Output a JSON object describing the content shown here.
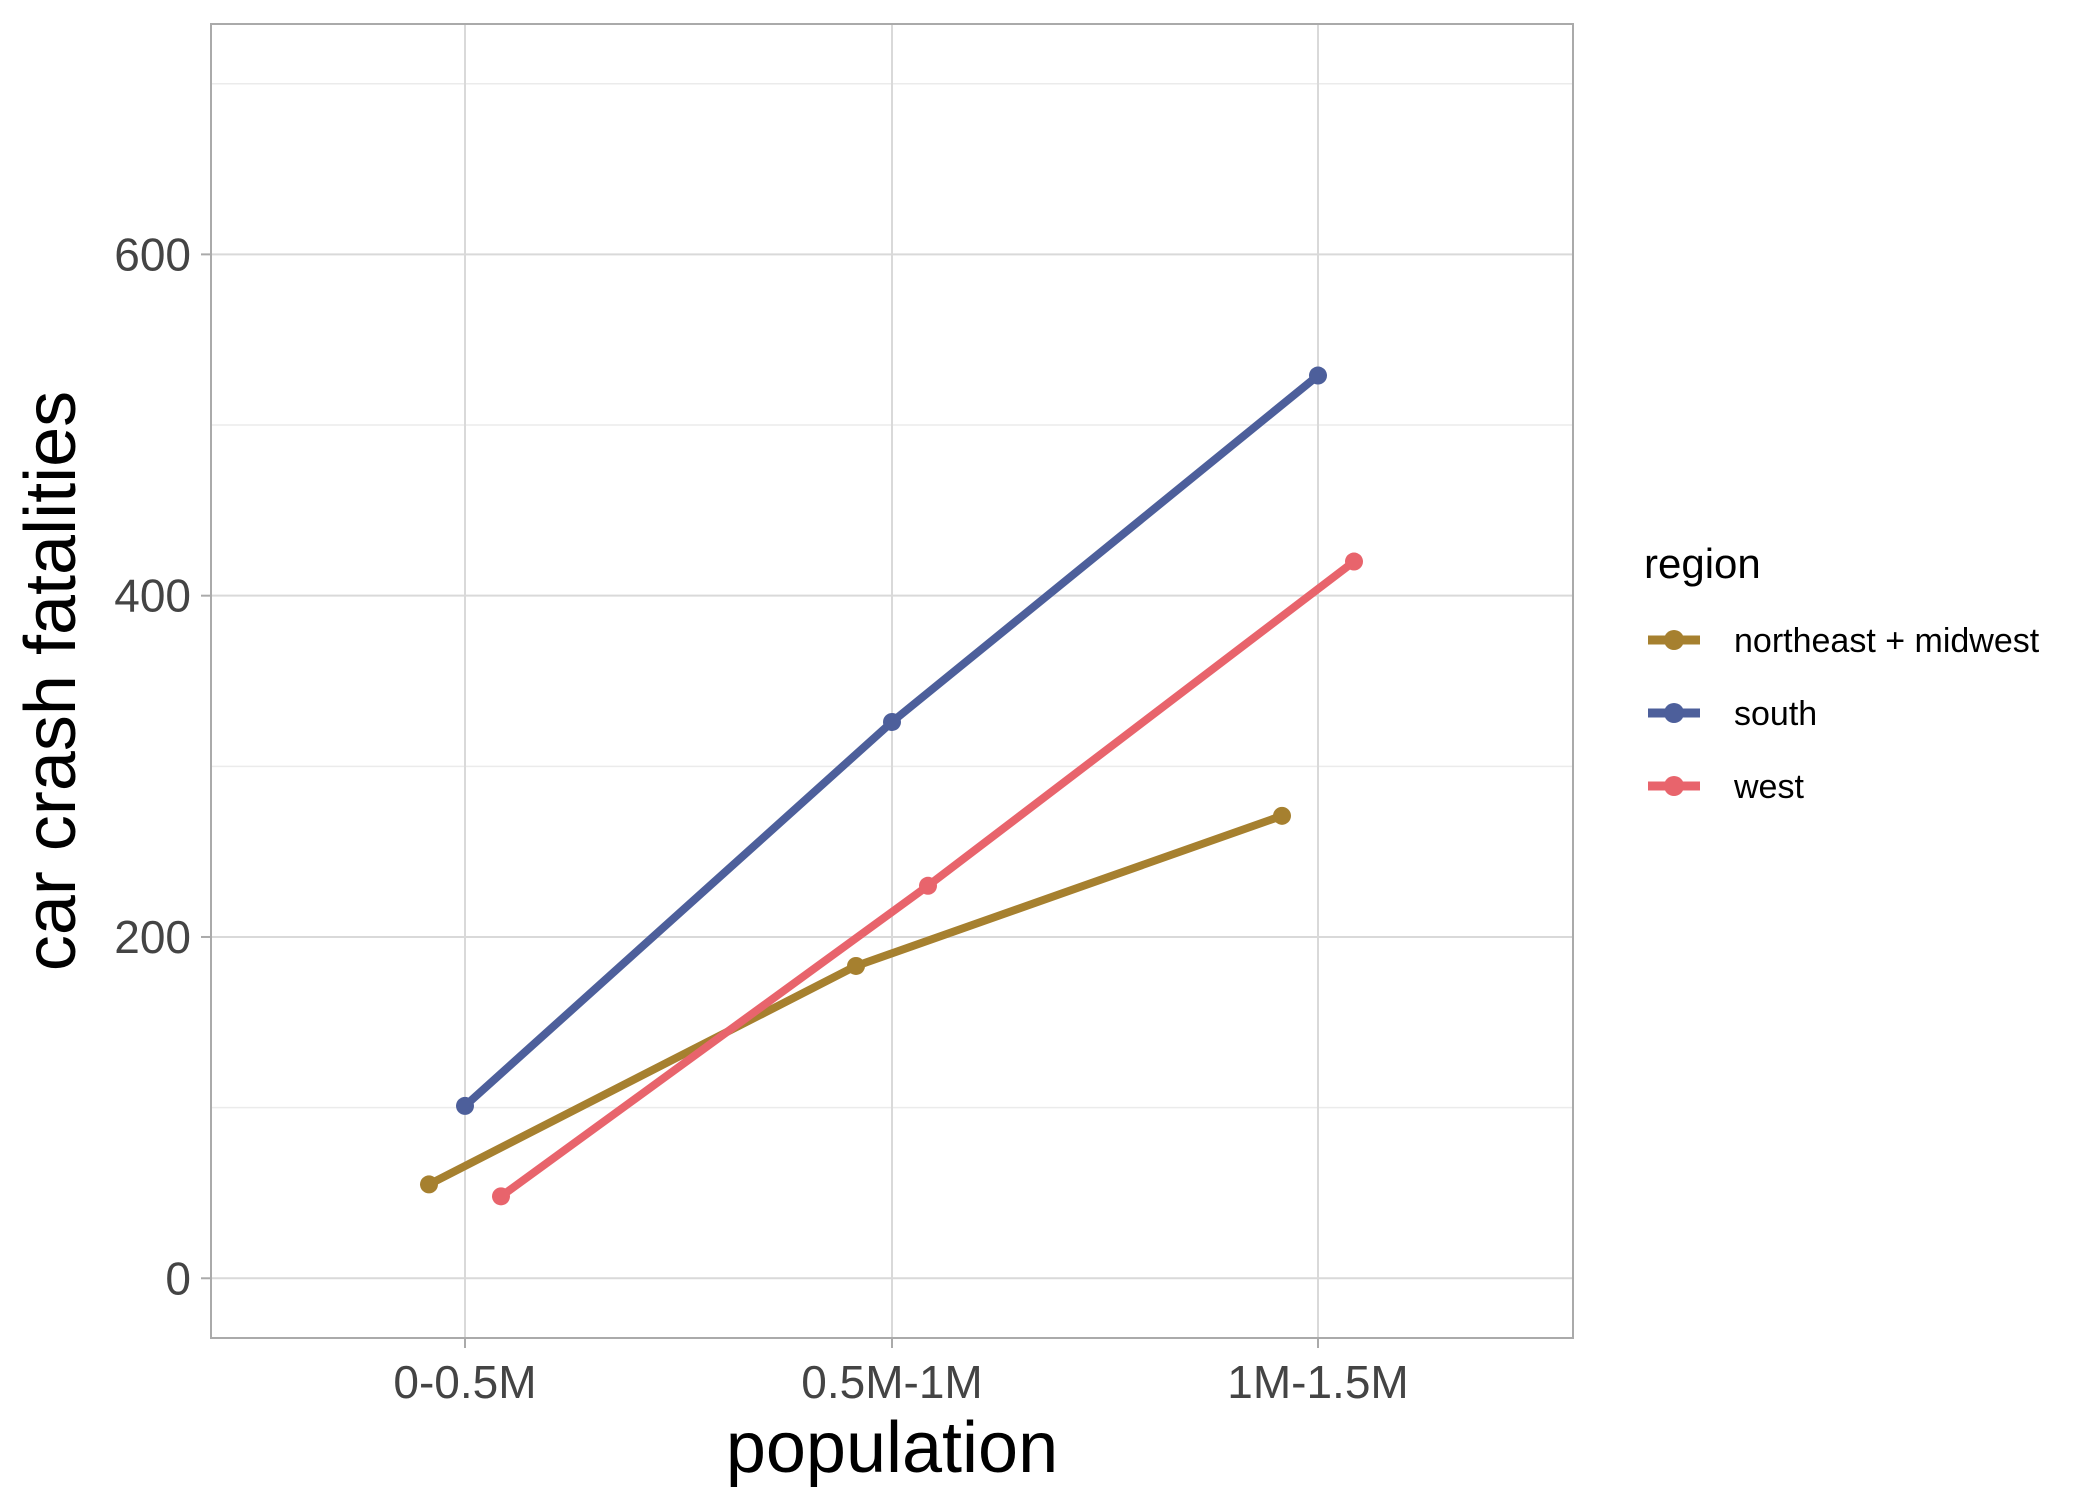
{
  "chart_data": {
    "type": "line",
    "xlabel": "population",
    "ylabel": "car crash fatalities",
    "categories": [
      "0-0.5M",
      "0.5M-1M",
      "1M-1.5M"
    ],
    "y_ticks": [
      0,
      200,
      400,
      600
    ],
    "ylim": [
      -35,
      735
    ],
    "grid": true,
    "legend": {
      "title": "region",
      "placement": "right"
    },
    "series": [
      {
        "name": "northeast + midwest",
        "color": "#A6802F",
        "values": [
          55,
          183,
          271
        ]
      },
      {
        "name": "south",
        "color": "#4D5F9B",
        "values": [
          101,
          326,
          529
        ]
      },
      {
        "name": "west",
        "color": "#E8646C",
        "values": [
          48,
          230,
          420
        ]
      }
    ]
  }
}
